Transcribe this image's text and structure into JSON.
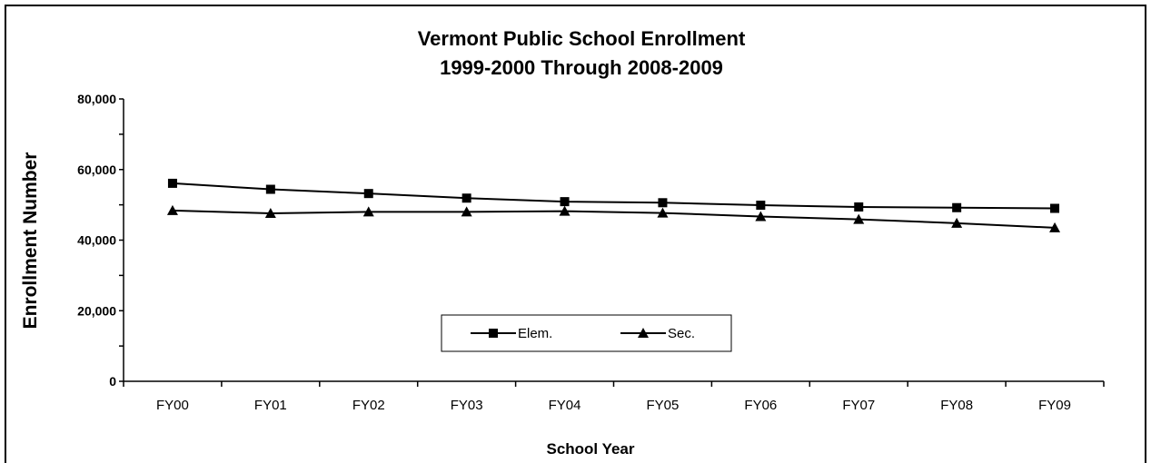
{
  "chart_data": {
    "type": "line",
    "title": "Vermont Public School Enrollment",
    "subtitle": "1999-2000 Through 2008-2009",
    "xlabel": "School Year",
    "ylabel": "Enrollment Number",
    "categories": [
      "FY00",
      "FY01",
      "FY02",
      "FY03",
      "FY04",
      "FY05",
      "FY06",
      "FY07",
      "FY08",
      "FY09"
    ],
    "ylim": [
      0,
      80000
    ],
    "yticks": [
      0,
      20000,
      40000,
      60000,
      80000
    ],
    "ytick_labels": [
      "0",
      "20,000",
      "40,000",
      "60,000",
      "80,000"
    ],
    "grid": false,
    "legend_position": "bottom-center",
    "series": [
      {
        "name": "Elem.",
        "marker": "square",
        "color": "#000000",
        "values": [
          56100,
          54400,
          53200,
          51900,
          50900,
          50600,
          49900,
          49400,
          49200,
          49000
        ]
      },
      {
        "name": "Sec.",
        "marker": "triangle",
        "color": "#000000",
        "values": [
          48400,
          47600,
          48000,
          48000,
          48200,
          47700,
          46700,
          45900,
          44800,
          43500
        ]
      }
    ]
  }
}
